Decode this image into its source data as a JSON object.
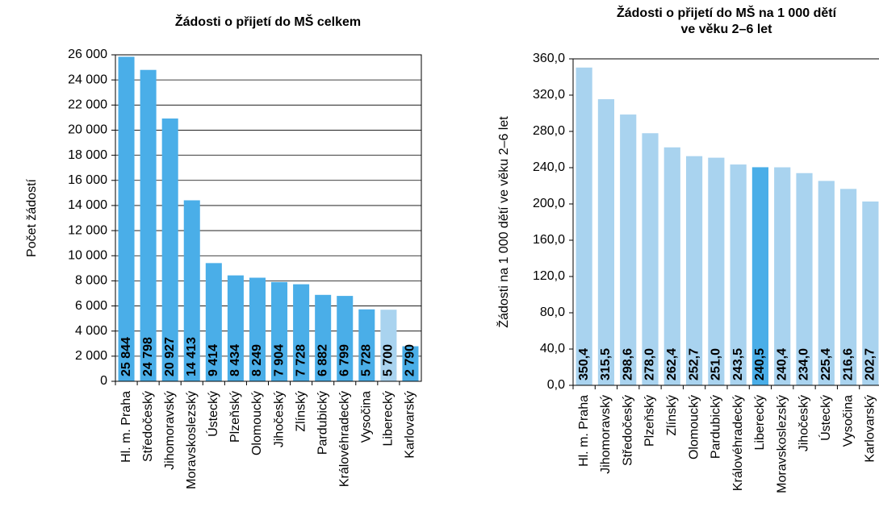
{
  "chart_data": [
    {
      "type": "bar",
      "title": [
        "Žádosti o přijetí do MŠ celkem"
      ],
      "y_label": "Počet žádostí",
      "categories": [
        "Hl. m. Praha",
        "Středočeský",
        "Jihomoravský",
        "Moravskoslezský",
        "Ústecký",
        "Plzeňský",
        "Olomoucký",
        "Jihočeský",
        "Zlínský",
        "Pardubický",
        "Královéhradecký",
        "Vysočina",
        "Liberecký",
        "Karlovarský"
      ],
      "values": [
        25844,
        24798,
        20927,
        14413,
        9414,
        8434,
        8249,
        7904,
        7728,
        6882,
        6799,
        5728,
        5700,
        2790
      ],
      "value_labels": [
        "25 844",
        "24 798",
        "20 927",
        "14 413",
        "9 414",
        "8 434",
        "8 249",
        "7 904",
        "7 728",
        "6 882",
        "6 799",
        "5 728",
        "5 700",
        "2 790"
      ],
      "colors": [
        "#4aaee8",
        "#4aaee8",
        "#4aaee8",
        "#4aaee8",
        "#4aaee8",
        "#4aaee8",
        "#4aaee8",
        "#4aaee8",
        "#4aaee8",
        "#4aaee8",
        "#4aaee8",
        "#4aaee8",
        "#a9d3ef",
        "#4aaee8"
      ],
      "ylim": [
        0,
        26000
      ],
      "yticks": [
        0,
        {
          "value": 2000,
          "label": "2 000"
        },
        {
          "value": 4000,
          "label": "4 000"
        },
        {
          "value": 6000,
          "label": "6 000"
        },
        {
          "value": 8000,
          "label": "8 000"
        },
        {
          "value": 10000,
          "label": "10 000"
        },
        {
          "value": 12000,
          "label": "12 000"
        },
        {
          "value": 14000,
          "label": "14 000"
        },
        {
          "value": 16000,
          "label": "16 000"
        },
        {
          "value": 18000,
          "label": "18 000"
        },
        {
          "value": 20000,
          "label": "20 000"
        },
        {
          "value": 22000,
          "label": "22 000"
        },
        {
          "value": 24000,
          "label": "24 000"
        },
        {
          "value": 26000,
          "label": "26 000"
        }
      ],
      "grid": true
    },
    {
      "type": "bar",
      "title": [
        "Žádosti o přijetí do MŠ na 1 000 dětí",
        "ve věku 2–6 let"
      ],
      "y_label": "Žádosti na 1 000 dětí ve věku 2–6 let",
      "categories": [
        "Hl. m. Praha",
        "Jihomoravský",
        "Středočeský",
        "Plzeňský",
        "Zlínský",
        "Olomoucký",
        "Pardubický",
        "Královéhradecký",
        "Liberecký",
        "Moravskoslezský",
        "Jihočeský",
        "Ústecký",
        "Vysočina",
        "Karlovarský"
      ],
      "values": [
        350.4,
        315.5,
        298.6,
        278.0,
        262.4,
        252.7,
        251.0,
        243.5,
        240.5,
        240.4,
        234.0,
        225.4,
        216.6,
        202.7
      ],
      "value_labels": [
        "350,4",
        "315,5",
        "298,6",
        "278,0",
        "262,4",
        "252,7",
        "251,0",
        "243,5",
        "240,5",
        "240,4",
        "234,0",
        "225,4",
        "216,6",
        "202,7"
      ],
      "colors": [
        "#a9d3ef",
        "#a9d3ef",
        "#a9d3ef",
        "#a9d3ef",
        "#a9d3ef",
        "#a9d3ef",
        "#a9d3ef",
        "#a9d3ef",
        "#4aaee8",
        "#a9d3ef",
        "#a9d3ef",
        "#a9d3ef",
        "#a9d3ef",
        "#a9d3ef"
      ],
      "ylim": [
        0,
        360
      ],
      "yticks": [
        {
          "value": 0,
          "label": "0,0"
        },
        {
          "value": 40,
          "label": "40,0"
        },
        {
          "value": 80,
          "label": "80,0"
        },
        {
          "value": 120,
          "label": "120,0"
        },
        {
          "value": 160,
          "label": "160,0"
        },
        {
          "value": 200,
          "label": "200,0"
        },
        {
          "value": 240,
          "label": "240,0"
        },
        {
          "value": 280,
          "label": "280,0"
        },
        {
          "value": 320,
          "label": "320,0"
        },
        {
          "value": 360,
          "label": "360,0"
        }
      ],
      "grid": false
    }
  ]
}
